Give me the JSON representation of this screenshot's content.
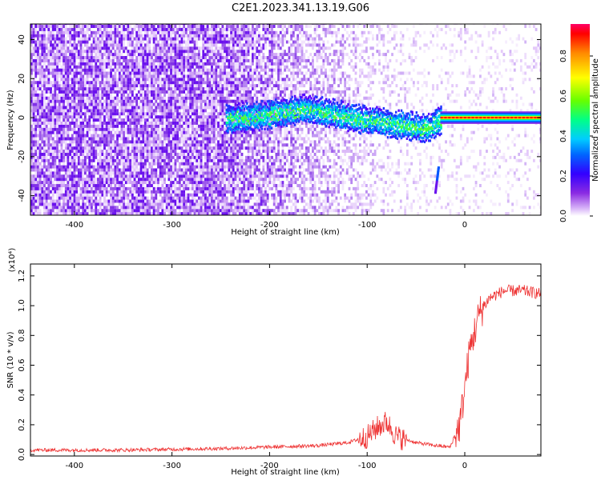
{
  "title": "C2E1.2023.341.13.19.G06",
  "chart_data": [
    {
      "type": "heatmap",
      "xlabel": "Height of straight line (km)",
      "ylabel": "Frequency (Hz)",
      "xlim": [
        -445,
        78
      ],
      "ylim": [
        -50,
        48
      ],
      "x_ticks": [
        -400,
        -300,
        -200,
        -100,
        0
      ],
      "y_ticks": [
        -40,
        -20,
        0,
        20,
        40
      ],
      "colorbar": {
        "label": "Normalized spectral amplitude",
        "range": [
          0.0,
          1.0
        ],
        "ticks": [
          "0.0",
          "0.2",
          "0.4",
          "0.6",
          "0.8"
        ],
        "colors": [
          "#ffffff",
          "#d8b4f8",
          "#8a2be2",
          "#5500ff",
          "#0000ff",
          "#00ccff",
          "#00ff88",
          "#66ff00",
          "#ffff00",
          "#ff8800",
          "#ff0000",
          "#ff0066"
        ]
      },
      "features": {
        "noise_region_km": [
          -445,
          -240
        ],
        "signal_ridge": [
          {
            "x": -240,
            "freq": 0
          },
          {
            "x": -200,
            "freq": 2
          },
          {
            "x": -165,
            "freq": 5
          },
          {
            "x": -140,
            "freq": 3
          },
          {
            "x": -110,
            "freq": 0
          },
          {
            "x": -70,
            "freq": -3
          },
          {
            "x": -40,
            "freq": -5
          },
          {
            "x": -25,
            "freq": -1
          },
          {
            "x": 78,
            "freq": 0
          }
        ],
        "strong_band_start_km": -25
      }
    },
    {
      "type": "line",
      "xlabel": "Height of straight line (km)",
      "ylabel": "SNR (10 * v/v)",
      "y_multiplier": "(x10⁴)",
      "xlim": [
        -445,
        78
      ],
      "ylim": [
        -0.01,
        1.28
      ],
      "x_ticks": [
        -400,
        -300,
        -200,
        -100,
        0
      ],
      "y_ticks": [
        "0.0",
        "0.2",
        "0.4",
        "0.6",
        "0.8",
        "1.0",
        "1.2"
      ],
      "series": [
        {
          "color": "#ee3333",
          "points": [
            [
              -445,
              0.03
            ],
            [
              -350,
              0.03
            ],
            [
              -250,
              0.04
            ],
            [
              -200,
              0.05
            ],
            [
              -150,
              0.06
            ],
            [
              -120,
              0.08
            ],
            [
              -100,
              0.12
            ],
            [
              -90,
              0.18
            ],
            [
              -80,
              0.22
            ],
            [
              -70,
              0.12
            ],
            [
              -50,
              0.08
            ],
            [
              -30,
              0.06
            ],
            [
              -15,
              0.05
            ],
            [
              -5,
              0.2
            ],
            [
              0,
              0.45
            ],
            [
              5,
              0.7
            ],
            [
              15,
              0.95
            ],
            [
              25,
              1.05
            ],
            [
              40,
              1.1
            ],
            [
              60,
              1.1
            ],
            [
              78,
              1.08
            ]
          ]
        }
      ]
    }
  ]
}
